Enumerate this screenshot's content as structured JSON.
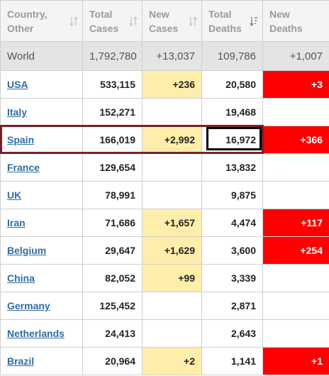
{
  "colors": {
    "header_bg": "#f4f4f4",
    "header_text": "#9a9a9a",
    "world_row_bg": "#e4e4e4",
    "link": "#2e6da4",
    "new_cases_highlight": "#ffeeaa",
    "new_deaths_highlight": "#ff0000",
    "row_outline": "#7a1f2b",
    "cell_outline": "#000000"
  },
  "header": {
    "country": [
      "Country,",
      "Other"
    ],
    "total_cases": [
      "Total",
      "Cases"
    ],
    "new_cases": [
      "New",
      "Cases"
    ],
    "total_deaths": [
      "Total",
      "Deaths"
    ],
    "new_deaths": [
      "New",
      "Deaths"
    ],
    "sorted_column": "total_deaths",
    "sort_direction": "descending"
  },
  "world": {
    "country": "World",
    "total_cases": "1,792,780",
    "new_cases": "+13,037",
    "total_deaths": "109,786",
    "new_deaths": "+1,007"
  },
  "rows": [
    {
      "country": "USA",
      "total_cases": "533,115",
      "new_cases": "+236",
      "total_deaths": "20,580",
      "new_deaths": "+3"
    },
    {
      "country": "Italy",
      "total_cases": "152,271",
      "new_cases": "",
      "total_deaths": "19,468",
      "new_deaths": ""
    },
    {
      "country": "Spain",
      "total_cases": "166,019",
      "new_cases": "+2,992",
      "total_deaths": "16,972",
      "new_deaths": "+366"
    },
    {
      "country": "France",
      "total_cases": "129,654",
      "new_cases": "",
      "total_deaths": "13,832",
      "new_deaths": ""
    },
    {
      "country": "UK",
      "total_cases": "78,991",
      "new_cases": "",
      "total_deaths": "9,875",
      "new_deaths": ""
    },
    {
      "country": "Iran",
      "total_cases": "71,686",
      "new_cases": "+1,657",
      "total_deaths": "4,474",
      "new_deaths": "+117"
    },
    {
      "country": "Belgium",
      "total_cases": "29,647",
      "new_cases": "+1,629",
      "total_deaths": "3,600",
      "new_deaths": "+254"
    },
    {
      "country": "China",
      "total_cases": "82,052",
      "new_cases": "+99",
      "total_deaths": "3,339",
      "new_deaths": ""
    },
    {
      "country": "Germany",
      "total_cases": "125,452",
      "new_cases": "",
      "total_deaths": "2,871",
      "new_deaths": ""
    },
    {
      "country": "Netherlands",
      "total_cases": "24,413",
      "new_cases": "",
      "total_deaths": "2,643",
      "new_deaths": ""
    },
    {
      "country": "Brazil",
      "total_cases": "20,964",
      "new_cases": "+2",
      "total_deaths": "1,141",
      "new_deaths": "+1"
    }
  ],
  "highlighted": {
    "row_country": "Spain",
    "cell_column": "total_deaths"
  }
}
